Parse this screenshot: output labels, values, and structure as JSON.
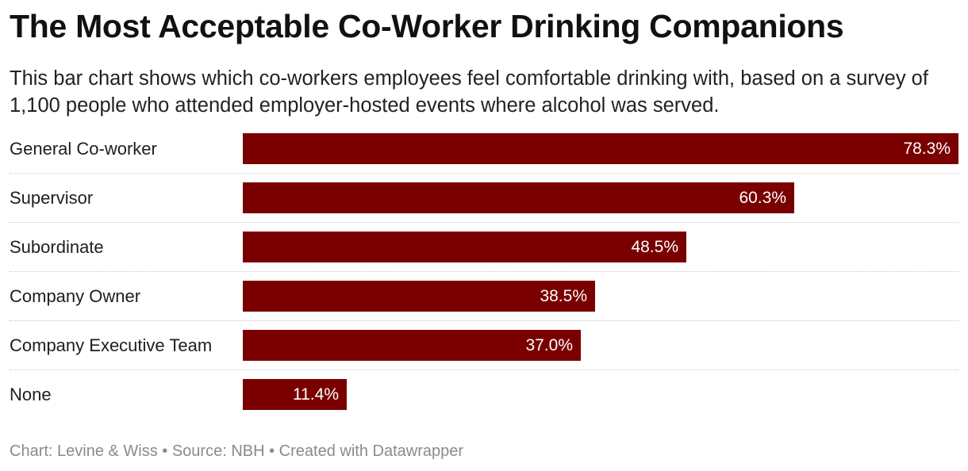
{
  "header": {
    "title": "The Most Acceptable Co-Worker Drinking Companions",
    "subtitle": "This bar chart shows which co-workers employees feel comfortable drinking with, based on a survey of 1,100 people who attended employer-hosted events where alcohol was served."
  },
  "chart_data": {
    "type": "bar",
    "orientation": "horizontal",
    "title": "The Most Acceptable Co-Worker Drinking Companions",
    "categories": [
      "General Co-worker",
      "Supervisor",
      "Subordinate",
      "Company Owner",
      "Company Executive Team",
      "None"
    ],
    "values": [
      78.3,
      60.3,
      48.5,
      38.5,
      37.0,
      11.4
    ],
    "value_labels": [
      "78.3%",
      "60.3%",
      "48.5%",
      "38.5%",
      "37.0%",
      "11.4%"
    ],
    "unit": "%",
    "xlim": [
      0,
      78.3
    ],
    "bar_color": "#7a0000",
    "label_color": "#ffffff"
  },
  "footer": {
    "text": "Chart: Levine & Wiss • Source: NBH • Created with Datawrapper"
  }
}
